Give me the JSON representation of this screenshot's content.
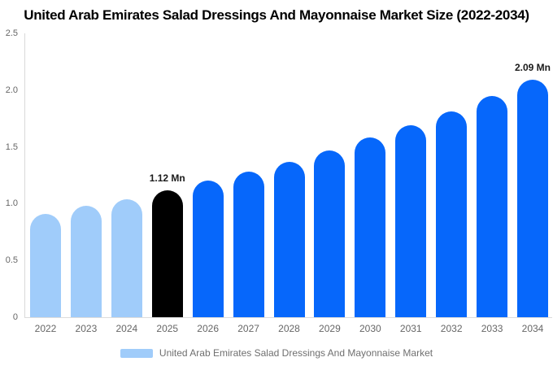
{
  "title": "United Arab Emirates Salad Dressings And Mayonnaise Market Size (2022-2034)",
  "legend": {
    "label": "United Arab Emirates Salad Dressings And Mayonnaise Market"
  },
  "colors": {
    "historical_bar": "#A0CCFA",
    "base_year_bar": "#000000",
    "forecast_bar": "#0667FB",
    "axis_line": "#D9D9D9",
    "tick_text": "#666666",
    "annotation_text": "#1A1A1A",
    "legend_text": "#6F6F6F"
  },
  "chart_data": {
    "type": "bar",
    "title": "United Arab Emirates Salad Dressings And Mayonnaise Market Size (2022-2034)",
    "series_name": "United Arab Emirates Salad Dressings And Mayonnaise Market",
    "unit": "Mn",
    "categories": [
      "2022",
      "2023",
      "2024",
      "2025",
      "2026",
      "2027",
      "2028",
      "2029",
      "2030",
      "2031",
      "2032",
      "2033",
      "2034"
    ],
    "values": [
      0.91,
      0.98,
      1.04,
      1.12,
      1.2,
      1.28,
      1.37,
      1.47,
      1.58,
      1.69,
      1.81,
      1.95,
      2.09
    ],
    "bar_segments": [
      "historical",
      "historical",
      "historical",
      "base_year",
      "forecast",
      "forecast",
      "forecast",
      "forecast",
      "forecast",
      "forecast",
      "forecast",
      "forecast",
      "forecast"
    ],
    "annotations": [
      {
        "category": "2025",
        "text": "1.12 Mn"
      },
      {
        "category": "2034",
        "text": "2.09 Mn"
      }
    ],
    "xlabel": "",
    "ylabel": "",
    "ylim": [
      0,
      2.5
    ],
    "yticks": [
      "0",
      "0.5",
      "1.0",
      "1.5",
      "2.0",
      "2.5"
    ],
    "ytick_values": [
      0,
      0.5,
      1.0,
      1.5,
      2.0,
      2.5
    ],
    "grid": "off",
    "legend_position": "bottom"
  }
}
